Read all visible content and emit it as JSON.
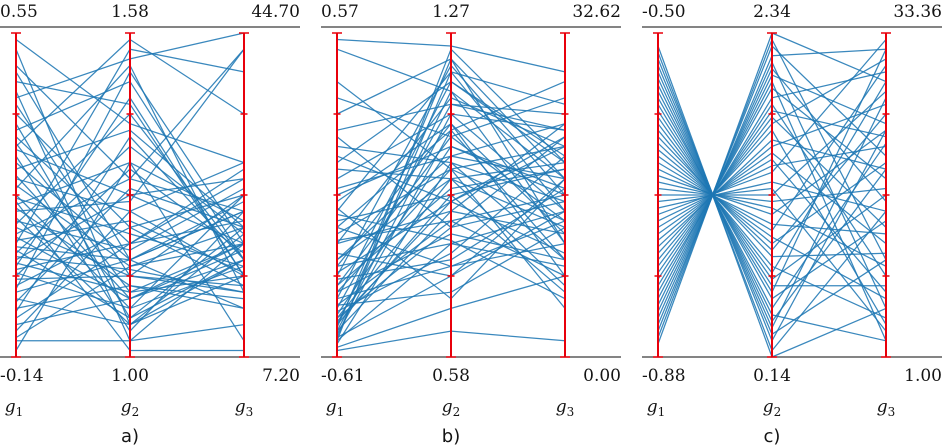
{
  "chart_data": {
    "type": "line",
    "subtype": "parallel_coordinates",
    "title": "",
    "style": {
      "line_color": "#1f77b4",
      "axis_color": "#e8000b",
      "frame_color": "#3a3a3a",
      "background": "#ffffff"
    },
    "values_normalized": true,
    "panels": [
      {
        "caption": "a)",
        "axes": [
          {
            "name": "g",
            "sub": "1",
            "min": "-0.14",
            "max": "0.55"
          },
          {
            "name": "g",
            "sub": "2",
            "min": "1.00",
            "max": "1.58"
          },
          {
            "name": "g",
            "sub": "3",
            "min": "7.20",
            "max": "44.70"
          }
        ],
        "lines": [
          [
            0.95,
            0.1,
            0.3
          ],
          [
            0.9,
            0.55,
            0.95
          ],
          [
            0.88,
            0.3,
            0.45
          ],
          [
            0.85,
            0.78,
            0.25
          ],
          [
            0.82,
            0.05,
            0.35
          ],
          [
            0.8,
            0.92,
            1.0
          ],
          [
            0.78,
            0.25,
            0.2
          ],
          [
            0.75,
            0.4,
            0.5
          ],
          [
            0.72,
            0.12,
            0.4
          ],
          [
            0.7,
            0.85,
            0.3
          ],
          [
            0.68,
            0.35,
            0.55
          ],
          [
            0.66,
            0.2,
            0.25
          ],
          [
            0.64,
            0.5,
            0.35
          ],
          [
            0.62,
            0.08,
            0.45
          ],
          [
            0.6,
            0.3,
            0.15
          ],
          [
            0.58,
            0.7,
            0.4
          ],
          [
            0.56,
            0.18,
            0.3
          ],
          [
            0.55,
            0.45,
            0.6
          ],
          [
            0.53,
            0.28,
            0.35
          ],
          [
            0.52,
            0.9,
            0.2
          ],
          [
            0.5,
            0.15,
            0.5
          ],
          [
            0.49,
            0.38,
            0.28
          ],
          [
            0.47,
            0.6,
            0.42
          ],
          [
            0.46,
            0.22,
            0.18
          ],
          [
            0.45,
            0.48,
            0.95
          ],
          [
            0.43,
            0.1,
            0.38
          ],
          [
            0.42,
            0.33,
            0.52
          ],
          [
            0.41,
            0.75,
            0.3
          ],
          [
            0.4,
            0.25,
            0.22
          ],
          [
            0.38,
            0.55,
            0.45
          ],
          [
            0.37,
            0.18,
            0.33
          ],
          [
            0.36,
            0.42,
            0.26
          ],
          [
            0.35,
            0.95,
            0.88
          ],
          [
            0.34,
            0.3,
            0.48
          ],
          [
            0.33,
            0.12,
            0.3
          ],
          [
            0.32,
            0.65,
            0.38
          ],
          [
            0.31,
            0.27,
            0.2
          ],
          [
            0.3,
            0.5,
            0.55
          ],
          [
            0.29,
            0.2,
            0.35
          ],
          [
            0.28,
            0.8,
            0.25
          ],
          [
            0.27,
            0.35,
            0.42
          ],
          [
            0.26,
            0.15,
            0.28
          ],
          [
            0.25,
            0.58,
            0.32
          ],
          [
            0.24,
            0.25,
            0.5
          ],
          [
            0.22,
            0.4,
            0.22
          ],
          [
            0.21,
            0.88,
            0.35
          ],
          [
            0.2,
            0.3,
            0.45
          ],
          [
            0.18,
            0.1,
            0.25
          ],
          [
            0.17,
            0.52,
            0.4
          ],
          [
            0.15,
            0.22,
            0.15
          ],
          [
            0.14,
            0.68,
            0.3
          ],
          [
            0.12,
            0.35,
            0.58
          ],
          [
            0.1,
            0.18,
            0.35
          ],
          [
            0.08,
            0.45,
            0.25
          ],
          [
            0.06,
            0.28,
            0.4
          ],
          [
            0.05,
            0.05,
            0.1
          ],
          [
            0.98,
            0.72,
            0.6
          ],
          [
            0.02,
            0.6,
            0.05
          ],
          [
            0.65,
            0.98,
            0.75
          ],
          [
            0.48,
            0.02,
            0.02
          ]
        ]
      },
      {
        "caption": "b)",
        "axes": [
          {
            "name": "g",
            "sub": "1",
            "min": "-0.61",
            "max": "0.57"
          },
          {
            "name": "g",
            "sub": "2",
            "min": "0.58",
            "max": "1.27"
          },
          {
            "name": "g",
            "sub": "3",
            "min": "0.00",
            "max": "32.62"
          }
        ],
        "lines": [
          [
            0.05,
            0.95,
            0.6
          ],
          [
            0.06,
            0.88,
            0.45
          ],
          [
            0.08,
            0.75,
            0.7
          ],
          [
            0.04,
            0.6,
            0.3
          ],
          [
            0.1,
            0.82,
            0.55
          ],
          [
            0.12,
            0.55,
            0.4
          ],
          [
            0.07,
            0.7,
            0.85
          ],
          [
            0.09,
            0.92,
            0.35
          ],
          [
            0.11,
            0.48,
            0.65
          ],
          [
            0.13,
            0.65,
            0.5
          ],
          [
            0.05,
            0.35,
            0.45
          ],
          [
            0.15,
            0.78,
            0.75
          ],
          [
            0.16,
            0.42,
            0.25
          ],
          [
            0.18,
            0.85,
            0.6
          ],
          [
            0.2,
            0.58,
            0.42
          ],
          [
            0.06,
            0.25,
            0.55
          ],
          [
            0.22,
            0.68,
            0.8
          ],
          [
            0.1,
            0.5,
            0.2
          ],
          [
            0.25,
            0.9,
            0.5
          ],
          [
            0.14,
            0.32,
            0.62
          ],
          [
            0.28,
            0.72,
            0.38
          ],
          [
            0.08,
            0.45,
            0.72
          ],
          [
            0.3,
            0.62,
            0.55
          ],
          [
            0.18,
            0.28,
            0.35
          ],
          [
            0.35,
            0.8,
            0.65
          ],
          [
            0.12,
            0.4,
            0.48
          ],
          [
            0.4,
            0.7,
            0.3
          ],
          [
            0.22,
            0.52,
            0.58
          ],
          [
            0.45,
            0.88,
            0.78
          ],
          [
            0.16,
            0.2,
            0.4
          ],
          [
            0.5,
            0.65,
            0.52
          ],
          [
            0.26,
            0.48,
            0.68
          ],
          [
            0.55,
            0.75,
            0.45
          ],
          [
            0.2,
            0.38,
            0.3
          ],
          [
            0.6,
            0.85,
            0.62
          ],
          [
            0.3,
            0.55,
            0.22
          ],
          [
            0.65,
            0.6,
            0.48
          ],
          [
            0.24,
            0.3,
            0.52
          ],
          [
            0.7,
            0.78,
            0.7
          ],
          [
            0.35,
            0.45,
            0.38
          ],
          [
            0.75,
            0.92,
            0.55
          ],
          [
            0.28,
            0.35,
            0.28
          ],
          [
            0.8,
            0.68,
            0.42
          ],
          [
            0.38,
            0.58,
            0.65
          ],
          [
            0.98,
            0.96,
            0.88
          ],
          [
            0.32,
            0.25,
            0.45
          ],
          [
            0.95,
            0.82,
            0.35
          ],
          [
            0.42,
            0.5,
            0.58
          ],
          [
            0.48,
            0.72,
            0.25
          ],
          [
            0.36,
            0.42,
            0.5
          ],
          [
            0.52,
            0.62,
            0.72
          ],
          [
            0.44,
            0.36,
            0.18
          ],
          [
            0.58,
            0.55,
            0.6
          ],
          [
            0.4,
            0.28,
            0.42
          ],
          [
            0.62,
            0.48,
            0.32
          ],
          [
            0.46,
            0.18,
            0.55
          ],
          [
            0.68,
            0.4,
            0.68
          ],
          [
            0.03,
            0.15,
            0.25
          ],
          [
            0.85,
            0.58,
            0.15
          ],
          [
            0.02,
            0.08,
            0.05
          ]
        ]
      },
      {
        "caption": "c)",
        "axes": [
          {
            "name": "g",
            "sub": "1",
            "min": "-0.88",
            "max": "-0.50"
          },
          {
            "name": "g",
            "sub": "2",
            "min": "0.14",
            "max": "2.34"
          },
          {
            "name": "g",
            "sub": "3",
            "min": "1.00",
            "max": "33.36"
          }
        ],
        "lines": [
          [
            0.04,
            1.0,
            0.85
          ],
          [
            0.06,
            0.98,
            0.3
          ],
          [
            0.08,
            0.96,
            0.62
          ],
          [
            0.1,
            0.93,
            0.95
          ],
          [
            0.12,
            0.91,
            0.15
          ],
          [
            0.14,
            0.89,
            0.48
          ],
          [
            0.16,
            0.87,
            0.72
          ],
          [
            0.18,
            0.85,
            0.05
          ],
          [
            0.2,
            0.83,
            0.55
          ],
          [
            0.22,
            0.8,
            0.88
          ],
          [
            0.24,
            0.78,
            0.25
          ],
          [
            0.26,
            0.76,
            0.68
          ],
          [
            0.28,
            0.74,
            0.4
          ],
          [
            0.3,
            0.72,
            0.92
          ],
          [
            0.32,
            0.7,
            0.1
          ],
          [
            0.34,
            0.67,
            0.58
          ],
          [
            0.36,
            0.65,
            0.78
          ],
          [
            0.38,
            0.63,
            0.35
          ],
          [
            0.4,
            0.61,
            0.2
          ],
          [
            0.42,
            0.59,
            0.65
          ],
          [
            0.44,
            0.57,
            0.98
          ],
          [
            0.46,
            0.54,
            0.45
          ],
          [
            0.48,
            0.52,
            0.08
          ],
          [
            0.5,
            0.5,
            0.82
          ],
          [
            0.52,
            0.48,
            0.52
          ],
          [
            0.54,
            0.46,
            0.28
          ],
          [
            0.56,
            0.44,
            0.7
          ],
          [
            0.58,
            0.41,
            0.38
          ],
          [
            0.6,
            0.39,
            0.9
          ],
          [
            0.62,
            0.37,
            0.18
          ],
          [
            0.64,
            0.35,
            0.6
          ],
          [
            0.66,
            0.33,
            0.75
          ],
          [
            0.68,
            0.31,
            0.32
          ],
          [
            0.7,
            0.28,
            0.12
          ],
          [
            0.72,
            0.26,
            0.85
          ],
          [
            0.74,
            0.24,
            0.5
          ],
          [
            0.76,
            0.22,
            0.22
          ],
          [
            0.78,
            0.2,
            0.95
          ],
          [
            0.8,
            0.18,
            0.42
          ],
          [
            0.82,
            0.15,
            0.66
          ],
          [
            0.84,
            0.13,
            0.05
          ],
          [
            0.86,
            0.11,
            0.58
          ],
          [
            0.88,
            0.09,
            0.8
          ],
          [
            0.9,
            0.07,
            0.3
          ],
          [
            0.92,
            0.05,
            0.7
          ],
          [
            0.94,
            0.02,
            0.45
          ],
          [
            0.96,
            0.0,
            0.15
          ]
        ]
      }
    ]
  }
}
